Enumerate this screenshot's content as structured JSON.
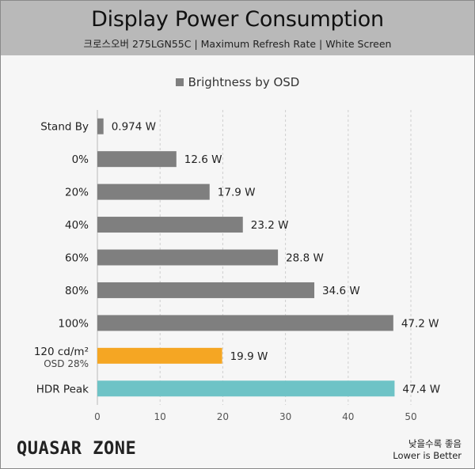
{
  "header": {
    "title": "Display Power Consumption",
    "subtitle": "크로스오버 275LGN55C  |  Maximum Refresh Rate  |  White Screen"
  },
  "chart_data": {
    "type": "bar",
    "orientation": "horizontal",
    "legend": {
      "label": "Brightness by OSD",
      "placement": "top-center"
    },
    "categories": [
      "Stand By",
      "0%",
      "20%",
      "40%",
      "60%",
      "80%",
      "100%",
      "120 cd/m²",
      "HDR Peak"
    ],
    "category_sublabels": [
      "",
      "",
      "",
      "",
      "",
      "",
      "",
      "OSD 28%",
      ""
    ],
    "values": [
      0.974,
      12.6,
      17.9,
      23.2,
      28.8,
      34.6,
      47.2,
      19.9,
      47.4
    ],
    "value_labels": [
      "0.974 W",
      "12.6 W",
      "17.9 W",
      "23.2 W",
      "28.8 W",
      "34.6 W",
      "47.2 W",
      "19.9 W",
      "47.4 W"
    ],
    "bar_colors": [
      "#7f7f7f",
      "#7f7f7f",
      "#7f7f7f",
      "#7f7f7f",
      "#7f7f7f",
      "#7f7f7f",
      "#7f7f7f",
      "#f5a623",
      "#6ec3c6"
    ],
    "xlim": [
      0,
      50
    ],
    "xticks": [
      "0",
      "10",
      "20",
      "30",
      "40",
      "50"
    ],
    "grid": "vertical-dashed"
  },
  "branding": {
    "logo": "QUASAR ZONE"
  },
  "footnote": {
    "korean": "낮을수록 좋음",
    "english": "Lower is Better"
  }
}
